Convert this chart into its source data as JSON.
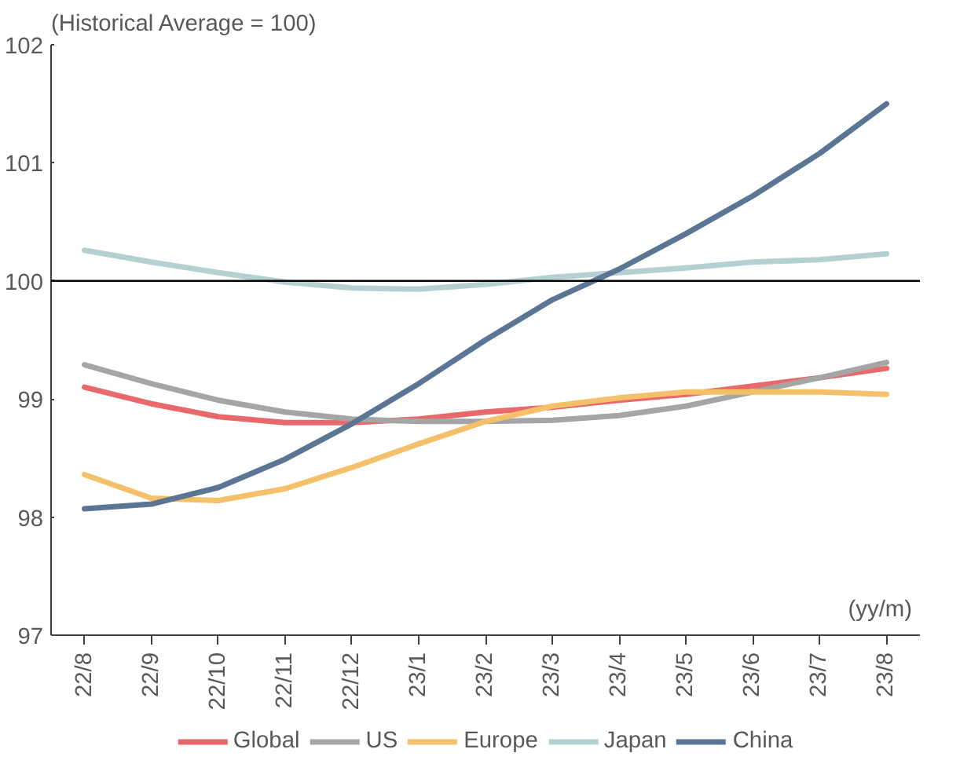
{
  "chart_data": {
    "type": "line",
    "annotations": [
      "(Historical Average = 100)",
      "(yy/m)"
    ],
    "categories": [
      "22/8",
      "22/9",
      "22/10",
      "22/11",
      "22/12",
      "23/1",
      "23/2",
      "23/3",
      "23/4",
      "23/5",
      "23/6",
      "23/7",
      "23/8"
    ],
    "series": [
      {
        "name": "Global",
        "color": "#e8696b",
        "values": [
          99.1,
          98.96,
          98.85,
          98.8,
          98.8,
          98.83,
          98.89,
          98.93,
          98.99,
          99.04,
          99.11,
          99.18,
          99.26
        ]
      },
      {
        "name": "US",
        "color": "#a5a5a5",
        "values": [
          99.29,
          99.13,
          98.99,
          98.89,
          98.83,
          98.81,
          98.81,
          98.82,
          98.86,
          98.94,
          99.06,
          99.18,
          99.31
        ]
      },
      {
        "name": "Europe",
        "color": "#f4c06a",
        "values": [
          98.36,
          98.16,
          98.14,
          98.24,
          98.42,
          98.62,
          98.81,
          98.94,
          99.01,
          99.06,
          99.06,
          99.06,
          99.04
        ]
      },
      {
        "name": "Japan",
        "color": "#b4d0d0",
        "values": [
          100.26,
          100.16,
          100.07,
          99.99,
          99.94,
          99.93,
          99.97,
          100.03,
          100.07,
          100.11,
          100.16,
          100.18,
          100.23
        ]
      },
      {
        "name": "China",
        "color": "#5b7594",
        "values": [
          98.07,
          98.11,
          98.25,
          98.49,
          98.79,
          99.13,
          99.5,
          99.84,
          100.1,
          100.4,
          100.72,
          101.08,
          101.5
        ]
      }
    ],
    "ylim": [
      97,
      102
    ],
    "yticks": [
      97,
      98,
      99,
      100,
      101,
      102
    ],
    "ref_lines": [
      {
        "axis": "y",
        "value": 100,
        "color": "#000000"
      }
    ],
    "grid": false,
    "legend": "bottom",
    "marker": "none",
    "line_style": "solid"
  }
}
